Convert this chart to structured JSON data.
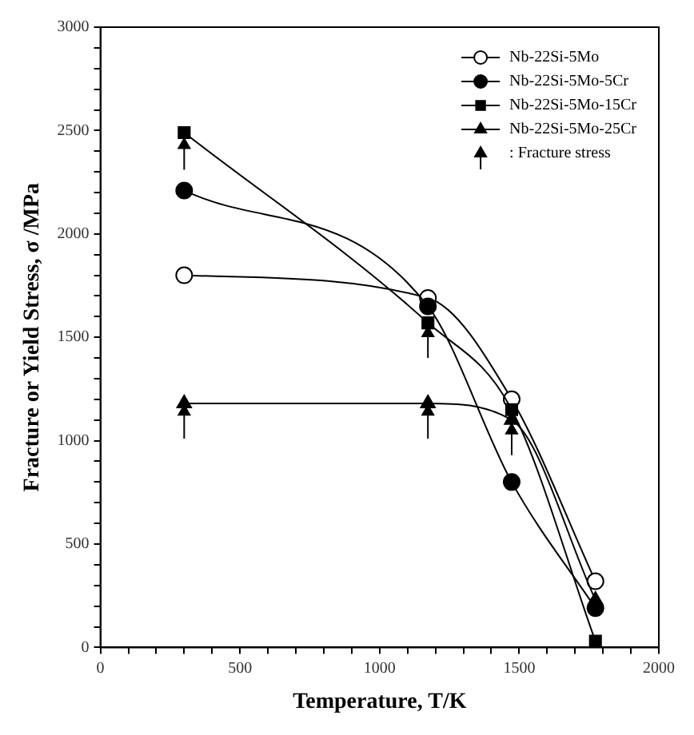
{
  "chart_data": {
    "type": "line",
    "xlabel": "Temperature, T/K",
    "ylabel": "Fracture or Yield Stress, σ /MPa",
    "xlim": [
      0,
      2000
    ],
    "ylim": [
      0,
      3000
    ],
    "xticks": [
      0,
      {
        "value": 100,
        "label": null
      },
      {
        "value": 200,
        "label": null
      },
      {
        "value": 300,
        "label": null
      },
      {
        "value": 400,
        "label": null
      },
      500,
      {
        "value": 600,
        "label": null
      },
      {
        "value": 700,
        "label": null
      },
      {
        "value": 800,
        "label": null
      },
      {
        "value": 900,
        "label": null
      },
      1000,
      {
        "value": 1100,
        "label": null
      },
      {
        "value": 1200,
        "label": null
      },
      {
        "value": 1300,
        "label": null
      },
      {
        "value": 1400,
        "label": null
      },
      1500,
      {
        "value": 1600,
        "label": null
      },
      {
        "value": 1700,
        "label": null
      },
      {
        "value": 1800,
        "label": null
      },
      {
        "value": 1900,
        "label": null
      },
      2000
    ],
    "yticks": [
      0,
      {
        "value": 100,
        "label": null
      },
      {
        "value": 200,
        "label": null
      },
      {
        "value": 300,
        "label": null
      },
      {
        "value": 400,
        "label": null
      },
      500,
      {
        "value": 600,
        "label": null
      },
      {
        "value": 700,
        "label": null
      },
      {
        "value": 800,
        "label": null
      },
      {
        "value": 900,
        "label": null
      },
      1000,
      {
        "value": 1100,
        "label": null
      },
      {
        "value": 1200,
        "label": null
      },
      {
        "value": 1300,
        "label": null
      },
      {
        "value": 1400,
        "label": null
      },
      1500,
      {
        "value": 1600,
        "label": null
      },
      {
        "value": 1700,
        "label": null
      },
      {
        "value": 1800,
        "label": null
      },
      {
        "value": 1900,
        "label": null
      },
      2000,
      {
        "value": 2100,
        "label": null
      },
      {
        "value": 2200,
        "label": null
      },
      {
        "value": 2300,
        "label": null
      },
      {
        "value": 2400,
        "label": null
      },
      2500,
      {
        "value": 2600,
        "label": null
      },
      {
        "value": 2700,
        "label": null
      },
      {
        "value": 2800,
        "label": null
      },
      {
        "value": 2900,
        "label": null
      },
      3000
    ],
    "x": [
      300,
      1173,
      1473,
      1773
    ],
    "grid": false,
    "legend": "top right",
    "series": [
      {
        "name": "Nb-22Si-5Mo",
        "color": "#000000",
        "marker": "circle",
        "colors": [
          "#ffffff",
          "#ffffff",
          "#ffffff",
          "#ffffff"
        ],
        "values": [
          1800,
          1690,
          1200,
          320
        ]
      },
      {
        "name": "Nb-22Si-5Mo-5Cr",
        "color": "#000000",
        "marker": "circle",
        "values": [
          2210,
          1650,
          800,
          190
        ]
      },
      {
        "name": "Nb-22Si-5Mo-15Cr",
        "color": "#000000",
        "marker": "square",
        "values": [
          2490,
          1570,
          1150,
          30
        ]
      },
      {
        "name": "Nb-22Si-5Mo-25Cr",
        "color": "#000000",
        "marker": "triangle",
        "values": [
          1180,
          1180,
          1100,
          230
        ]
      },
      {
        "name": ": Fracture stress",
        "type": "scatter",
        "color": "#000000",
        "marker": "triangle",
        "x": [
          300,
          300,
          1173,
          1173,
          1473
        ],
        "values": [
          2430,
          1140,
          1520,
          1140,
          1050
        ],
        "errors": [
          [
            2310,
            2430
          ],
          [
            1010,
            1140
          ],
          [
            1400,
            1520
          ],
          [
            1010,
            1140
          ],
          [
            930,
            1050
          ]
        ]
      }
    ]
  }
}
